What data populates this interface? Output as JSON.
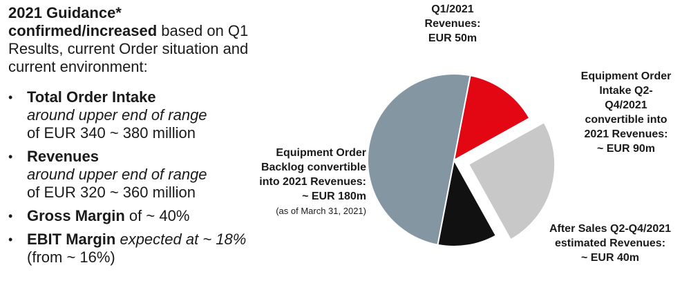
{
  "guidance": {
    "title": "2021 Guidance*",
    "bold_line": "confirmed/increased",
    "line1_rest": " based on Q1",
    "line2": "Results, current Order situation and",
    "line3": "current environment:"
  },
  "bullets": [
    {
      "marker": "•",
      "heading": "Total Order Intake",
      "italic": "around upper end of range",
      "plain": "of EUR 340 ~ 380 million"
    },
    {
      "marker": "•",
      "heading": "Revenues",
      "italic": "around upper end of range",
      "plain": "of EUR 320 ~ 360 million"
    },
    {
      "marker": "•",
      "heading": "Gross Margin",
      "suffix": " of ~ 40%"
    },
    {
      "marker": "•",
      "heading": "EBIT Margin",
      "italic_suffix": " expected at ~ 18%",
      "plain": "(from ~ 16%)"
    }
  ],
  "chart_data": {
    "type": "pie",
    "unit": "EUR m",
    "slices": [
      {
        "label_lines": [
          "Q1/2021",
          "Revenues:",
          "EUR 50m"
        ],
        "value": 50,
        "color": "#e30613",
        "exploded": false
      },
      {
        "label_lines": [
          "Equipment Order",
          "Intake Q2-",
          "Q4/2021",
          "convertible into",
          "2021 Revenues:",
          "~ EUR 90m"
        ],
        "value": 90,
        "color": "#c8c8c8",
        "exploded": true
      },
      {
        "label_lines": [
          "After Sales Q2-Q4/2021",
          "estimated Revenues:",
          "~ EUR 40m"
        ],
        "value": 40,
        "color": "#111111",
        "exploded": false
      },
      {
        "label_lines": [
          "Equipment Order",
          "Backlog convertible",
          "into 2021 Revenues:",
          "~ EUR 180m"
        ],
        "note": "(as of March 31, 2021)",
        "value": 180,
        "color": "#8596a3",
        "exploded": false
      }
    ]
  }
}
